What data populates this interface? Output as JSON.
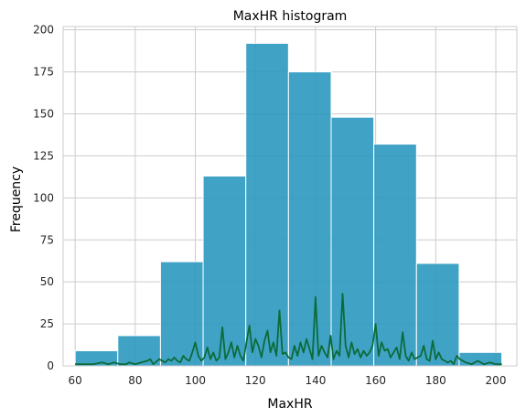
{
  "chart_data": {
    "type": "bar",
    "title": "MaxHR histogram",
    "xlabel": "MaxHR",
    "ylabel": "Frequency",
    "xlim": [
      56,
      207
    ],
    "ylim": [
      0,
      202
    ],
    "grid": true,
    "xticks": [
      60,
      80,
      100,
      120,
      140,
      160,
      180,
      200
    ],
    "yticks": [
      0,
      25,
      50,
      75,
      100,
      125,
      150,
      175,
      200
    ],
    "bar_color": "#2596be",
    "line_color": "#0b6b3a",
    "histogram": {
      "bin_edges": [
        60,
        74.2,
        88.4,
        102.6,
        116.8,
        131,
        145.2,
        159.4,
        173.6,
        187.8,
        202
      ],
      "counts": [
        9,
        18,
        62,
        113,
        192,
        175,
        148,
        132,
        61,
        8
      ]
    },
    "line_series": {
      "x": [
        60,
        63,
        66,
        69,
        71,
        73,
        75,
        77,
        78,
        80,
        82,
        84,
        85,
        86,
        88,
        90,
        91,
        92,
        93,
        94,
        95,
        96,
        97,
        98,
        99,
        100,
        101,
        102,
        103,
        104,
        105,
        106,
        107,
        108,
        109,
        110,
        111,
        112,
        113,
        114,
        115,
        116,
        117,
        118,
        119,
        120,
        121,
        122,
        123,
        124,
        125,
        126,
        127,
        128,
        129,
        130,
        131,
        132,
        133,
        134,
        135,
        136,
        137,
        138,
        139,
        140,
        141,
        142,
        143,
        144,
        145,
        146,
        147,
        148,
        149,
        150,
        151,
        152,
        153,
        154,
        155,
        156,
        157,
        158,
        159,
        160,
        161,
        162,
        163,
        164,
        165,
        166,
        167,
        168,
        169,
        170,
        171,
        172,
        173,
        174,
        175,
        176,
        177,
        178,
        179,
        180,
        181,
        182,
        183,
        184,
        185,
        186,
        187,
        188,
        190,
        192,
        194,
        196,
        198,
        200,
        202
      ],
      "y": [
        1,
        1,
        1,
        2,
        1,
        2,
        1,
        1,
        2,
        1,
        2,
        3,
        4,
        1,
        4,
        2,
        4,
        3,
        5,
        3,
        2,
        6,
        4,
        3,
        8,
        14,
        6,
        3,
        5,
        11,
        4,
        8,
        3,
        5,
        23,
        4,
        8,
        14,
        5,
        12,
        6,
        3,
        14,
        24,
        8,
        16,
        12,
        5,
        15,
        21,
        8,
        14,
        6,
        33,
        7,
        8,
        5,
        4,
        12,
        6,
        14,
        8,
        16,
        10,
        4,
        41,
        6,
        12,
        8,
        5,
        18,
        4,
        9,
        6,
        43,
        12,
        5,
        14,
        7,
        10,
        5,
        9,
        6,
        8,
        12,
        25,
        6,
        14,
        9,
        10,
        5,
        8,
        11,
        4,
        20,
        6,
        3,
        8,
        4,
        5,
        6,
        12,
        4,
        3,
        15,
        4,
        8,
        4,
        3,
        2,
        3,
        1,
        6,
        4,
        2,
        1,
        3,
        1,
        2,
        1,
        1
      ]
    }
  }
}
